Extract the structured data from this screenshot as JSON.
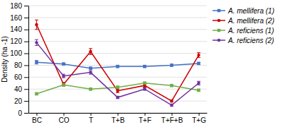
{
  "chart_data": {
    "type": "line",
    "categories": [
      "BC",
      "CO",
      "T",
      "T+B",
      "T+F",
      "T+F+B",
      "T+G"
    ],
    "series": [
      {
        "name": "A. mellifera (1)",
        "color": "#4472C4",
        "marker": "square",
        "values": [
          85,
          82,
          75,
          78,
          78,
          80,
          83
        ],
        "errors": [
          3,
          2,
          2,
          2,
          2,
          2,
          2
        ]
      },
      {
        "name": "A. mellifera (2)",
        "color": "#CC0000",
        "marker": "circle",
        "values": [
          148,
          48,
          103,
          37,
          46,
          20,
          97
        ],
        "errors": [
          8,
          3,
          5,
          3,
          3,
          2,
          4
        ]
      },
      {
        "name": "A. reficiens (1)",
        "color": "#70AD47",
        "marker": "square",
        "values": [
          32,
          47,
          40,
          43,
          50,
          46,
          38
        ],
        "errors": [
          2,
          2,
          2,
          2,
          2,
          2,
          2
        ]
      },
      {
        "name": "A. reficiens (2)",
        "color": "#7030A0",
        "marker": "circle",
        "values": [
          118,
          62,
          68,
          26,
          40,
          13,
          50
        ],
        "errors": [
          5,
          3,
          3,
          2,
          2,
          2,
          3
        ]
      }
    ],
    "ylabel": "Density (ha -1)",
    "ylim": [
      0,
      180
    ],
    "yticks": [
      0,
      20,
      40,
      60,
      80,
      100,
      120,
      140,
      160,
      180
    ],
    "grid": true,
    "legend": "right"
  }
}
